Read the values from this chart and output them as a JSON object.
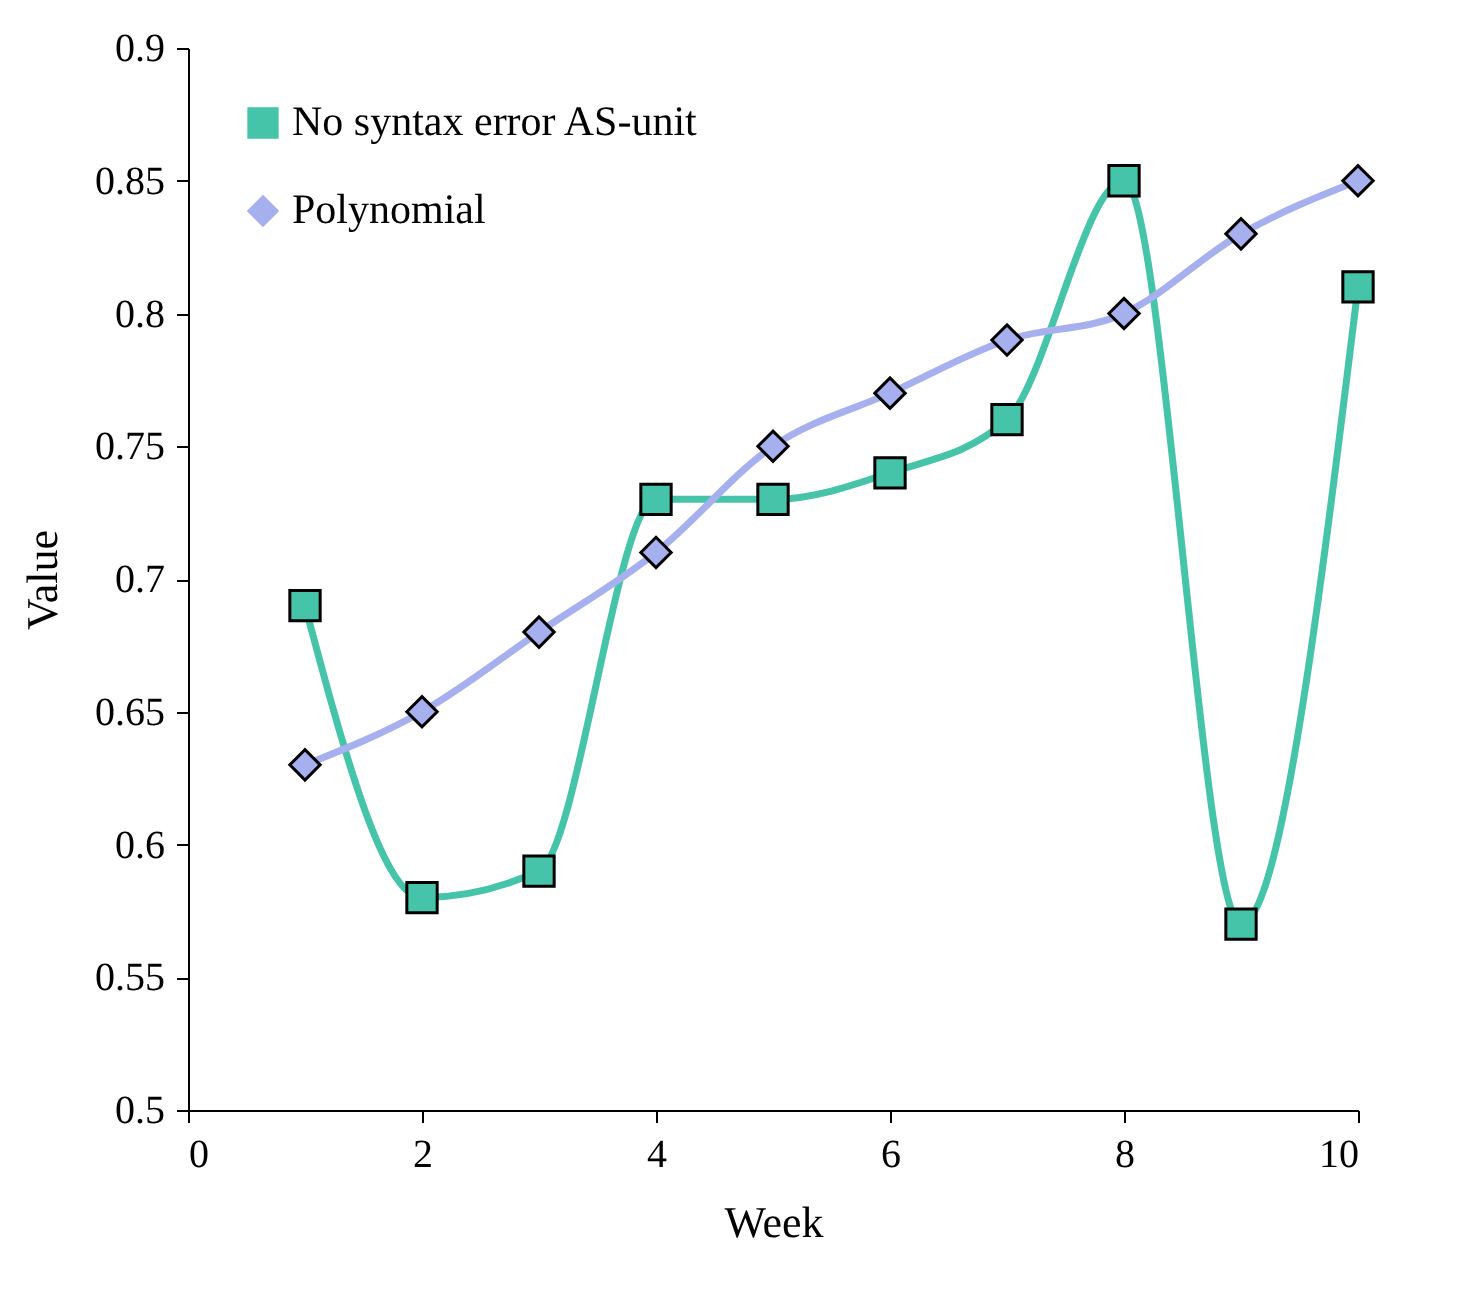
{
  "chart_data": {
    "type": "line",
    "xlabel": "Week",
    "ylabel": "Value",
    "x": [
      1,
      2,
      3,
      4,
      5,
      6,
      7,
      8,
      9,
      10
    ],
    "series": [
      {
        "name": "No syntax error AS-unit",
        "color": "#45c4aa",
        "marker": "square",
        "values": [
          0.69,
          0.58,
          0.59,
          0.73,
          0.73,
          0.74,
          0.76,
          0.85,
          0.57,
          0.81
        ]
      },
      {
        "name": "Polynomial",
        "color": "#a6b0ee",
        "marker": "diamond",
        "values": [
          0.63,
          0.65,
          0.68,
          0.71,
          0.75,
          0.77,
          0.79,
          0.8,
          0.83,
          0.85
        ]
      }
    ],
    "xlim": [
      0,
      10
    ],
    "xticks": [
      0,
      2,
      4,
      6,
      8,
      10
    ],
    "ylim": [
      0.5,
      0.9
    ],
    "yticks": [
      0.5,
      0.55,
      0.6,
      0.65,
      0.7,
      0.75,
      0.8,
      0.85,
      0.9
    ],
    "grid": false,
    "legend": "top left",
    "line_style": "solid"
  }
}
